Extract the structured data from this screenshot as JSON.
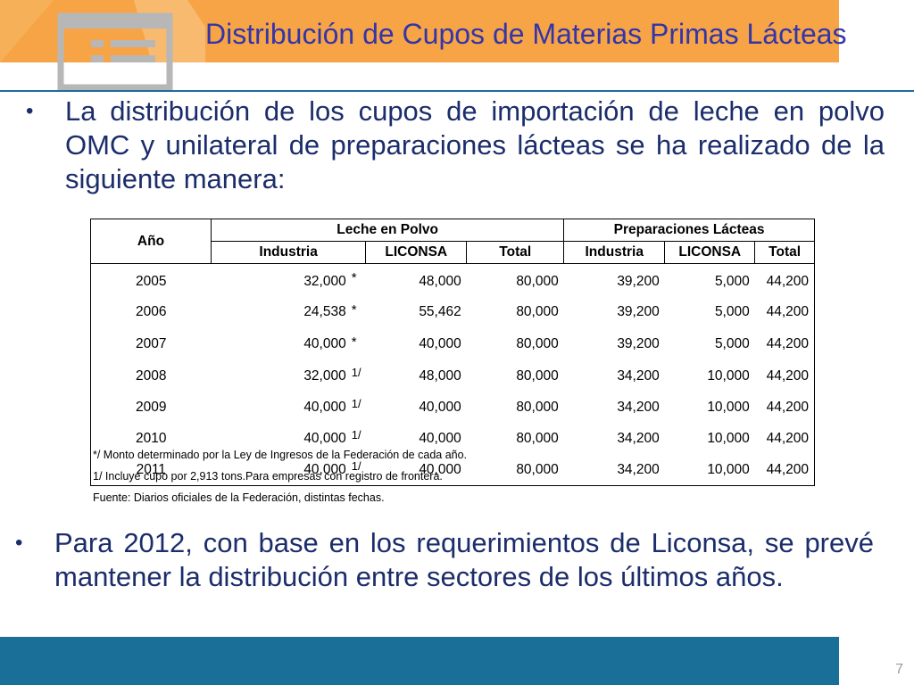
{
  "title": "Distribución de Cupos de Materias Primas Lácteas",
  "bullets": [
    {
      "dot": "•",
      "text": "La distribución de los cupos de importación de leche en polvo OMC y unilateral de preparaciones lácteas se ha realizado de la siguiente manera:"
    },
    {
      "dot": "•",
      "text": "Para 2012, con base en los requerimientos de Liconsa, se prevé mantener la distribución entre sectores de los últimos años."
    }
  ],
  "table": {
    "year_header": "Año",
    "group1": "Leche en Polvo",
    "group2": "Preparaciones Lácteas",
    "sub_headers": [
      "Industria",
      "LICONSA",
      "Total",
      "Industria",
      "LICONSA",
      "Total"
    ],
    "rows": [
      {
        "year": "2005",
        "lp_ind": "32,000",
        "mark": "*",
        "lp_lic": "48,000",
        "lp_tot": "80,000",
        "pl_ind": "39,200",
        "pl_lic": "5,000",
        "pl_tot": "44,200"
      },
      {
        "year": "2006",
        "lp_ind": "24,538",
        "mark": "*",
        "lp_lic": "55,462",
        "lp_tot": "80,000",
        "pl_ind": "39,200",
        "pl_lic": "5,000",
        "pl_tot": "44,200"
      },
      {
        "year": "2007",
        "lp_ind": "40,000",
        "mark": "*",
        "lp_lic": "40,000",
        "lp_tot": "80,000",
        "pl_ind": "39,200",
        "pl_lic": "5,000",
        "pl_tot": "44,200"
      },
      {
        "year": "2008",
        "lp_ind": "32,000",
        "mark": "1/",
        "lp_lic": "48,000",
        "lp_tot": "80,000",
        "pl_ind": "34,200",
        "pl_lic": "10,000",
        "pl_tot": "44,200"
      },
      {
        "year": "2009",
        "lp_ind": "40,000",
        "mark": "1/",
        "lp_lic": "40,000",
        "lp_tot": "80,000",
        "pl_ind": "34,200",
        "pl_lic": "10,000",
        "pl_tot": "44,200"
      },
      {
        "year": "2010",
        "lp_ind": "40,000",
        "mark": "1/",
        "lp_lic": "40,000",
        "lp_tot": "80,000",
        "pl_ind": "34,200",
        "pl_lic": "10,000",
        "pl_tot": "44,200"
      },
      {
        "year": "2011",
        "lp_ind": "40,000",
        "mark": "1/",
        "lp_lic": "40,000",
        "lp_tot": "80,000",
        "pl_ind": "34,200",
        "pl_lic": "10,000",
        "pl_tot": "44,200"
      }
    ]
  },
  "footnotes": [
    "*/  Monto determinado por la Ley de Ingresos de la Federación de cada año.",
    "1/ Incluye cupo por 2,913 tons.Para empresas con registro de frontera.",
    "Fuente: Diarios oficiales de la Federación, distintas fechas."
  ],
  "page_number": "7",
  "colors": {
    "header": "#f7a446",
    "title": "#3335a8",
    "footer": "#1a6f99",
    "body_text": "#1b2d6b"
  }
}
